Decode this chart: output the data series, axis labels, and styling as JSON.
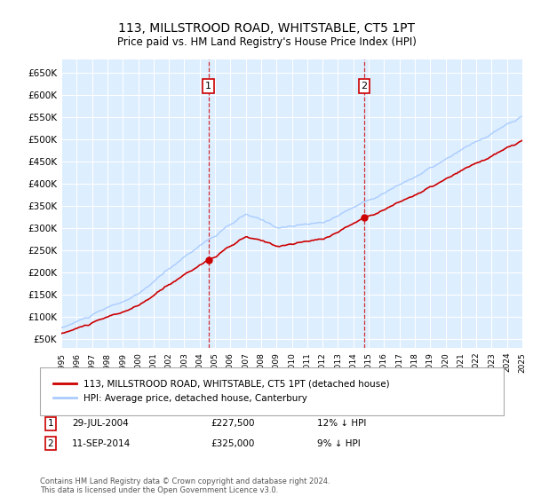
{
  "title": "113, MILLSTROOD ROAD, WHITSTABLE, CT5 1PT",
  "subtitle": "Price paid vs. HM Land Registry's House Price Index (HPI)",
  "ylim": [
    30000,
    680000
  ],
  "ytick_vals": [
    50000,
    100000,
    150000,
    200000,
    250000,
    300000,
    350000,
    400000,
    450000,
    500000,
    550000,
    600000,
    650000
  ],
  "background_color": "#ddeeff",
  "grid_color": "#ffffff",
  "line1_color": "#cc0000",
  "line2_color": "#aaccff",
  "sale1_x": 2004.58,
  "sale1_y": 227500,
  "sale2_x": 2014.71,
  "sale2_y": 325000,
  "legend_label1": "113, MILLSTROOD ROAD, WHITSTABLE, CT5 1PT (detached house)",
  "legend_label2": "HPI: Average price, detached house, Canterbury",
  "annotation1_label": "1",
  "annotation2_label": "2",
  "note1_num": "1",
  "note1_date": "29-JUL-2004",
  "note1_price": "£227,500",
  "note1_hpi": "12% ↓ HPI",
  "note2_num": "2",
  "note2_date": "11-SEP-2014",
  "note2_price": "£325,000",
  "note2_hpi": "9% ↓ HPI",
  "footer": "Contains HM Land Registry data © Crown copyright and database right 2024.\nThis data is licensed under the Open Government Licence v3.0.",
  "xmin": 1995,
  "xmax": 2025
}
